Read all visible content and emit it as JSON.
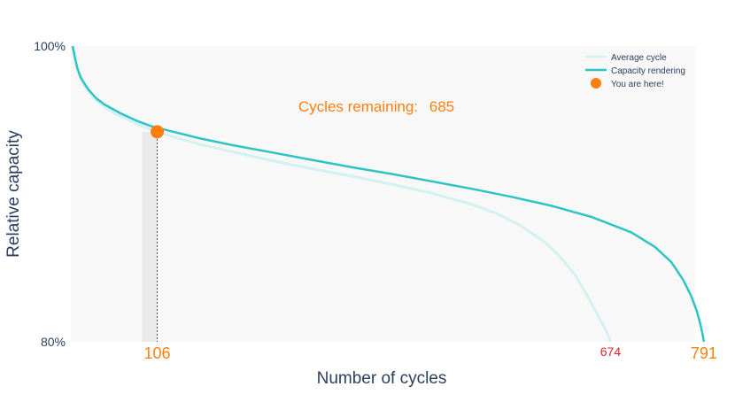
{
  "chart_data": {
    "type": "line",
    "xlabel": "Number of cycles",
    "ylabel": "Relative capacity",
    "xlim": [
      0,
      810
    ],
    "ylim": [
      80,
      100
    ],
    "y_ticks": [
      "100%",
      "80%"
    ],
    "legend_position": "top-right",
    "grid": false,
    "annotation": {
      "label": "Cycles remaining:",
      "value": "685"
    },
    "series": [
      {
        "name": "Average cycle",
        "color": "#d3f1f1",
        "x": [
          0,
          3,
          6,
          10,
          15,
          20,
          30,
          40,
          50,
          60,
          80,
          100,
          130,
          160,
          200,
          250,
          300,
          350,
          400,
          450,
          500,
          530,
          560,
          590,
          610,
          630,
          645,
          655,
          662,
          667,
          670,
          672,
          674
        ],
        "y": [
          100,
          99.1,
          98.4,
          97.8,
          97.3,
          96.9,
          96.3,
          95.9,
          95.55,
          95.25,
          94.75,
          94.3,
          93.8,
          93.35,
          92.85,
          92.25,
          91.7,
          91.2,
          90.65,
          90.05,
          89.3,
          88.7,
          87.9,
          86.8,
          85.8,
          84.5,
          83.1,
          82.1,
          81.4,
          80.9,
          80.6,
          80.3,
          80
        ]
      },
      {
        "name": "Capacity rendering",
        "color": "#2ec4c4",
        "x": [
          0,
          3,
          6,
          10,
          15,
          20,
          30,
          40,
          50,
          60,
          80,
          100,
          130,
          160,
          200,
          250,
          300,
          350,
          400,
          450,
          500,
          550,
          600,
          650,
          700,
          730,
          750,
          765,
          775,
          782,
          786,
          789,
          791
        ],
        "y": [
          100,
          99.2,
          98.5,
          97.9,
          97.45,
          97.05,
          96.45,
          96.05,
          95.75,
          95.45,
          94.95,
          94.55,
          94.15,
          93.75,
          93.3,
          92.8,
          92.3,
          91.8,
          91.35,
          90.85,
          90.35,
          89.8,
          89.2,
          88.45,
          87.4,
          86.4,
          85.4,
          84.2,
          83.1,
          82.1,
          81.3,
          80.6,
          80
        ]
      }
    ],
    "marker": {
      "name": "You are here!",
      "color": "#ff7f0e",
      "x": 106,
      "y": 94.2
    },
    "x_markers": [
      {
        "value": 106,
        "label": "106",
        "color": "#ff7f0e"
      },
      {
        "value": 674,
        "label": "674",
        "color": "#d62728"
      },
      {
        "value": 791,
        "label": "791",
        "color": "#ff7f0e"
      }
    ]
  }
}
